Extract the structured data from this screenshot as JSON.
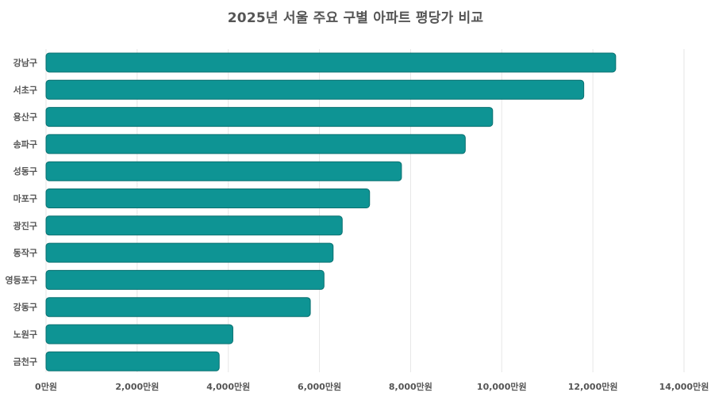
{
  "chart_data": {
    "type": "bar",
    "orientation": "horizontal",
    "title": "2025년 서울 주요 구별 아파트 평당가 비교",
    "xlabel": "",
    "ylabel": "",
    "categories": [
      "강남구",
      "서초구",
      "용산구",
      "송파구",
      "성동구",
      "마포구",
      "광진구",
      "동작구",
      "영등포구",
      "강동구",
      "노원구",
      "금천구"
    ],
    "values": [
      12500,
      11800,
      9800,
      9200,
      7800,
      7100,
      6500,
      6300,
      6100,
      5800,
      4100,
      3800
    ],
    "xlim": [
      0,
      14000
    ],
    "x_ticks": [
      0,
      2000,
      4000,
      6000,
      8000,
      10000,
      12000,
      14000
    ],
    "x_tick_labels": [
      "0만원",
      "2,000만원",
      "4,000만원",
      "6,000만원",
      "8,000만원",
      "10,000만원",
      "12,000만원",
      "14,000만원"
    ],
    "grid": true,
    "legend": "none",
    "colors": {
      "bar_fill": "#0e9494",
      "bar_stroke": "#0a7070",
      "grid": "#e6e6e6",
      "text": "#555555"
    }
  }
}
